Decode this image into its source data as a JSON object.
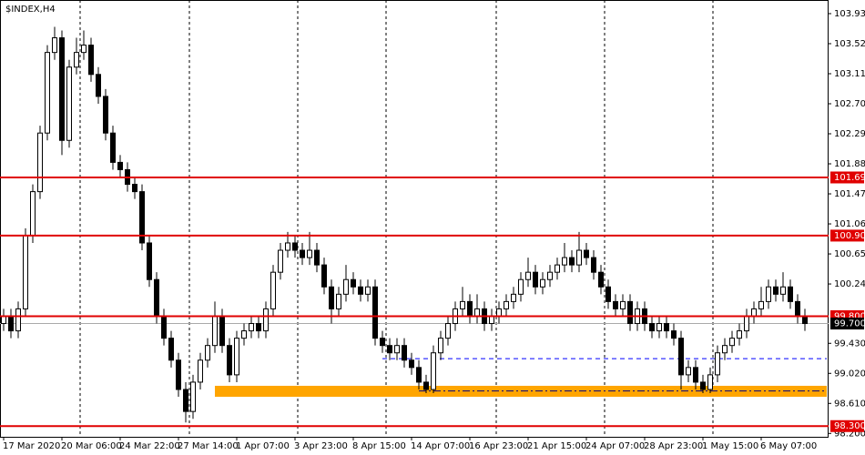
{
  "chart_data": {
    "type": "candlestick",
    "title": "$INDEX,H4",
    "categories": [
      "17 Mar 2020",
      null,
      null,
      null,
      null,
      null,
      null,
      null,
      "20 Mar 06:00",
      null,
      null,
      null,
      null,
      null,
      null,
      null,
      "24 Mar 22:00",
      null,
      null,
      null,
      null,
      null,
      null,
      null,
      "27 Mar 14:00",
      null,
      null,
      null,
      null,
      null,
      null,
      null,
      "1 Apr 07:00",
      null,
      null,
      null,
      null,
      null,
      null,
      null,
      "3 Apr 23:00",
      null,
      null,
      null,
      null,
      null,
      null,
      null,
      "8 Apr 15:00",
      null,
      null,
      null,
      null,
      null,
      null,
      null,
      "14 Apr 07:00",
      null,
      null,
      null,
      null,
      null,
      null,
      null,
      "16 Apr 23:00",
      null,
      null,
      null,
      null,
      null,
      null,
      null,
      "21 Apr 15:00",
      null,
      null,
      null,
      null,
      null,
      null,
      null,
      "24 Apr 07:00",
      null,
      null,
      null,
      null,
      null,
      null,
      null,
      "28 Apr 23:00",
      null,
      null,
      null,
      null,
      null,
      null,
      null,
      "1 May 15:00",
      null,
      null,
      null,
      null,
      null,
      null,
      null,
      "6 May 07:00",
      null,
      null,
      null,
      null,
      null,
      null
    ],
    "open": [
      99.7,
      99.8,
      99.6,
      99.9,
      100.9,
      101.5,
      102.3,
      103.4,
      103.6,
      102.2,
      103.2,
      103.4,
      103.5,
      103.1,
      102.8,
      102.3,
      101.9,
      101.8,
      101.6,
      101.5,
      100.8,
      100.3,
      99.8,
      99.5,
      99.2,
      98.8,
      98.5,
      98.9,
      99.2,
      99.4,
      99.8,
      99.4,
      99.0,
      99.5,
      99.6,
      99.7,
      99.6,
      99.9,
      100.4,
      100.7,
      100.8,
      100.7,
      100.6,
      100.7,
      100.5,
      100.2,
      99.9,
      100.1,
      100.3,
      100.2,
      100.1,
      100.2,
      99.5,
      99.4,
      99.3,
      99.4,
      99.2,
      99.1,
      98.9,
      98.8,
      99.3,
      99.5,
      99.7,
      99.9,
      100.0,
      99.8,
      99.9,
      99.7,
      99.8,
      99.9,
      100.0,
      100.1,
      100.3,
      100.4,
      100.2,
      100.3,
      100.4,
      100.5,
      100.6,
      100.5,
      100.7,
      100.6,
      100.4,
      100.2,
      100.0,
      99.9,
      100.0,
      99.7,
      99.9,
      99.7,
      99.6,
      99.7,
      99.6,
      99.5,
      99.0,
      99.1,
      98.9,
      98.8,
      99.0,
      99.3,
      99.4,
      99.5,
      99.6,
      99.8,
      99.9,
      100.0,
      100.2,
      100.1,
      100.2,
      100.0,
      99.8
    ],
    "high": [
      99.9,
      99.9,
      100.0,
      101.0,
      101.6,
      102.4,
      103.5,
      103.75,
      103.7,
      103.3,
      103.6,
      103.7,
      103.6,
      103.2,
      102.9,
      102.4,
      102.0,
      101.9,
      101.7,
      101.6,
      100.9,
      100.4,
      99.9,
      99.6,
      99.3,
      98.9,
      99.0,
      99.3,
      99.5,
      100.0,
      99.9,
      99.5,
      99.6,
      99.7,
      99.8,
      99.8,
      100.0,
      100.5,
      100.8,
      100.95,
      100.9,
      100.8,
      100.95,
      100.8,
      100.6,
      100.3,
      100.2,
      100.5,
      100.4,
      100.3,
      100.3,
      100.3,
      99.6,
      99.5,
      99.5,
      99.5,
      99.3,
      99.2,
      99.0,
      99.4,
      99.6,
      99.8,
      100.0,
      100.2,
      100.1,
      100.1,
      100.0,
      99.9,
      100.0,
      100.1,
      100.2,
      100.4,
      100.6,
      100.5,
      100.4,
      100.5,
      100.6,
      100.8,
      100.7,
      100.95,
      100.8,
      100.7,
      100.5,
      100.3,
      100.1,
      100.1,
      100.1,
      100.0,
      100.0,
      99.8,
      99.8,
      99.8,
      99.7,
      99.6,
      99.2,
      99.2,
      99.0,
      99.1,
      99.4,
      99.5,
      99.6,
      99.7,
      99.9,
      100.0,
      100.2,
      100.3,
      100.3,
      100.4,
      100.3,
      100.1,
      99.9
    ],
    "low": [
      99.6,
      99.5,
      99.5,
      99.8,
      100.8,
      101.4,
      102.2,
      103.3,
      102.0,
      102.1,
      103.1,
      103.3,
      103.0,
      102.7,
      102.2,
      101.8,
      101.7,
      101.5,
      101.4,
      100.7,
      100.2,
      99.7,
      99.4,
      99.1,
      98.7,
      98.35,
      98.4,
      98.8,
      99.1,
      99.3,
      99.3,
      98.9,
      98.9,
      99.4,
      99.5,
      99.5,
      99.5,
      99.8,
      100.3,
      100.6,
      100.6,
      100.5,
      100.5,
      100.4,
      100.1,
      99.7,
      99.8,
      100.0,
      100.1,
      100.0,
      100.0,
      99.4,
      99.3,
      99.2,
      99.2,
      99.1,
      99.0,
      98.8,
      98.75,
      98.75,
      99.2,
      99.4,
      99.6,
      99.8,
      99.7,
      99.7,
      99.6,
      99.6,
      99.7,
      99.8,
      99.9,
      100.0,
      100.2,
      100.1,
      100.1,
      100.2,
      100.3,
      100.4,
      100.4,
      100.4,
      100.5,
      100.3,
      100.1,
      99.9,
      99.8,
      99.8,
      99.6,
      99.6,
      99.6,
      99.5,
      99.5,
      99.5,
      99.4,
      98.8,
      98.9,
      98.8,
      98.75,
      98.75,
      98.9,
      99.2,
      99.3,
      99.4,
      99.5,
      99.7,
      99.8,
      99.9,
      100.0,
      100.0,
      99.9,
      99.7,
      99.6
    ],
    "close": [
      99.8,
      99.6,
      99.9,
      100.9,
      101.5,
      102.3,
      103.4,
      103.6,
      102.2,
      103.2,
      103.4,
      103.5,
      103.1,
      102.8,
      102.3,
      101.9,
      101.8,
      101.6,
      101.5,
      100.8,
      100.3,
      99.8,
      99.5,
      99.2,
      98.8,
      98.5,
      98.9,
      99.2,
      99.4,
      99.8,
      99.4,
      99.0,
      99.5,
      99.6,
      99.7,
      99.6,
      99.9,
      100.4,
      100.7,
      100.8,
      100.7,
      100.6,
      100.7,
      100.5,
      100.2,
      99.9,
      100.1,
      100.3,
      100.2,
      100.1,
      100.2,
      99.5,
      99.4,
      99.3,
      99.4,
      99.2,
      99.1,
      98.9,
      98.8,
      99.3,
      99.5,
      99.7,
      99.9,
      100.0,
      99.8,
      99.9,
      99.7,
      99.8,
      99.9,
      100.0,
      100.1,
      100.3,
      100.4,
      100.2,
      100.3,
      100.4,
      100.5,
      100.6,
      100.5,
      100.7,
      100.6,
      100.4,
      100.2,
      100.0,
      99.9,
      100.0,
      99.7,
      99.9,
      99.7,
      99.6,
      99.7,
      99.6,
      99.5,
      99.0,
      99.1,
      98.9,
      98.8,
      99.0,
      99.3,
      99.4,
      99.5,
      99.6,
      99.8,
      99.9,
      100.0,
      100.2,
      100.1,
      100.2,
      100.0,
      99.8,
      99.7
    ],
    "ylim": [
      98.154,
      104.116
    ],
    "yticks": [
      {
        "value": 103.93,
        "label": "103.930"
      },
      {
        "value": 103.52,
        "label": "103.520"
      },
      {
        "value": 103.11,
        "label": "103.110"
      },
      {
        "value": 102.7,
        "label": "102.700"
      },
      {
        "value": 102.29,
        "label": "102.290"
      },
      {
        "value": 101.88,
        "label": "101.880"
      },
      {
        "value": 101.47,
        "label": "101.470"
      },
      {
        "value": 101.06,
        "label": "101.060"
      },
      {
        "value": 100.65,
        "label": "100.650"
      },
      {
        "value": 100.24,
        "label": "100.240"
      },
      {
        "value": 99.43,
        "label": "99.430"
      },
      {
        "value": 99.02,
        "label": "99.020"
      },
      {
        "value": 98.61,
        "label": "98.610"
      },
      {
        "value": 98.2,
        "label": "98.200"
      }
    ],
    "levels": [
      {
        "value": 101.694,
        "label": "101.694",
        "color": "#e00000"
      },
      {
        "value": 100.9,
        "label": "100.900",
        "color": "#e00000"
      },
      {
        "value": 99.8,
        "label": "99.800",
        "color": "#e00000"
      },
      {
        "value": 98.3,
        "label": "98.300",
        "color": "#e00000"
      }
    ],
    "current_price": {
      "value": 99.7,
      "label": "99.700",
      "color": "#000000"
    },
    "guide_lines": [
      {
        "value": 99.22,
        "start": 52,
        "color": "#0000ff",
        "style": "dash"
      },
      {
        "value": 98.78,
        "start": 57,
        "color": "#000080",
        "style": "dashdot"
      }
    ],
    "zone": {
      "from": 98.7,
      "to": 98.85,
      "start": 29,
      "color": "#ffa500"
    }
  }
}
